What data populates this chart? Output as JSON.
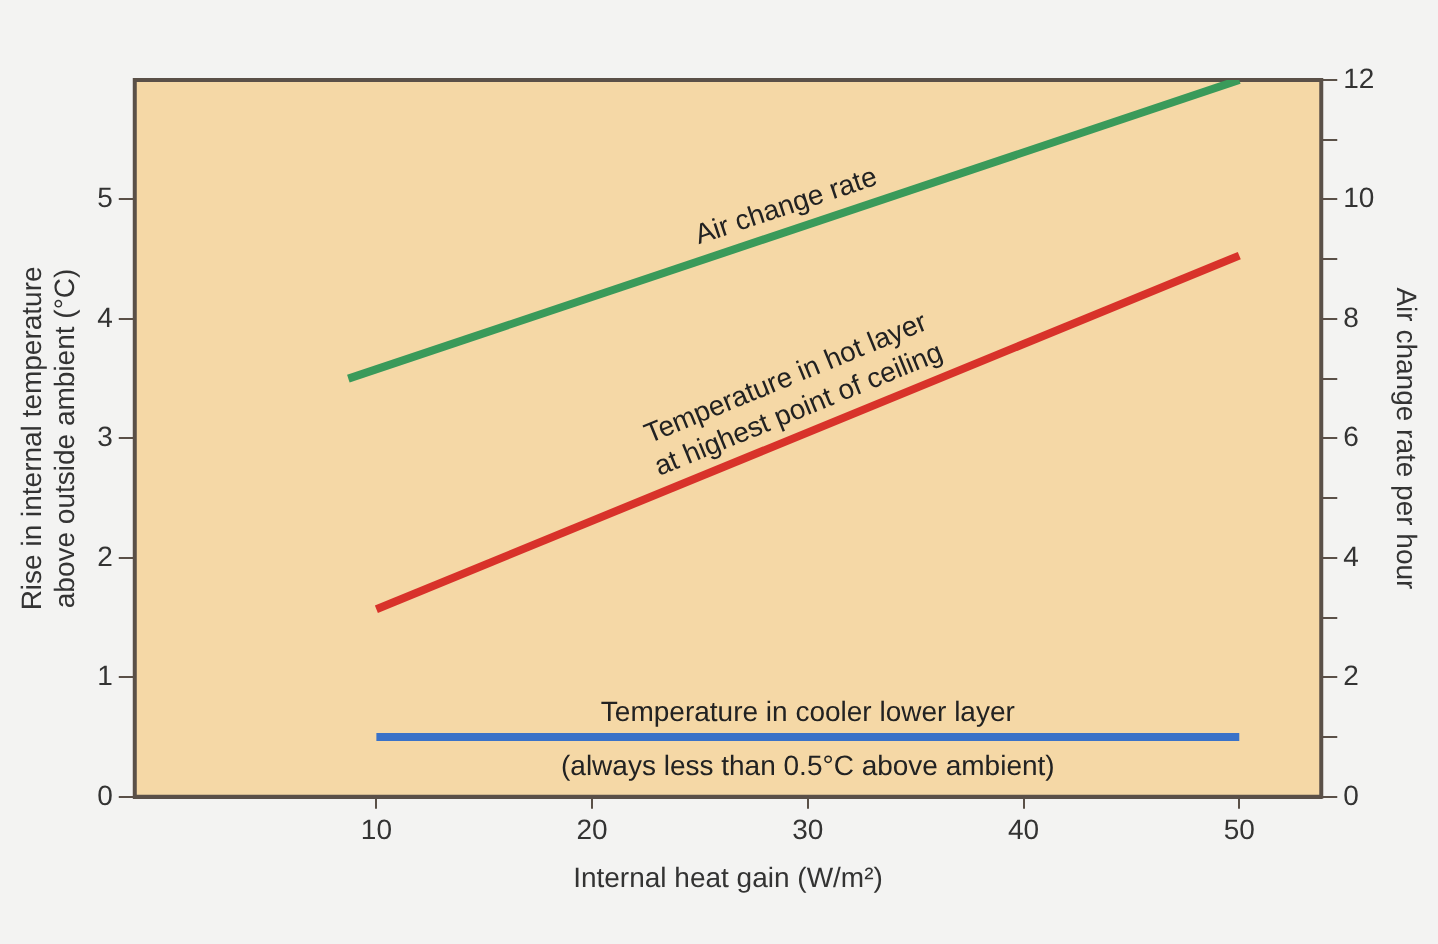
{
  "chart_data": {
    "type": "line",
    "xlabel": "Internal heat gain (W/m²)",
    "ylabel": "Rise in internal temperature above outside ambient (°C)",
    "y2label": "Air change rate per hour",
    "xlim": [
      -1.2,
      53.8
    ],
    "xticks": [
      10,
      20,
      30,
      40,
      50
    ],
    "ylim": [
      0,
      6
    ],
    "yticks": [
      0,
      1,
      2,
      3,
      4,
      5
    ],
    "y2lim": [
      0,
      12
    ],
    "y2ticks": [
      0,
      {
        "value": 1,
        "label": null
      },
      2,
      {
        "value": 3,
        "label": null
      },
      4,
      {
        "value": 5,
        "label": null
      },
      6,
      {
        "value": 7,
        "label": null
      },
      8,
      {
        "value": 9,
        "label": null
      },
      10,
      {
        "value": 11,
        "label": null
      },
      12
    ],
    "series": [
      {
        "name": "Air change rate",
        "color": "#3a9a5a",
        "axis": "y2",
        "x": [
          8.7,
          50
        ],
        "values": [
          7,
          12
        ]
      },
      {
        "name": "Temperature in hot layer at highest point of ceiling",
        "color": "#d8322a",
        "x": [
          10,
          50
        ],
        "values": [
          1.57,
          4.53
        ]
      },
      {
        "name": "Temperature in cooler lower layer",
        "color": "#3a72c8",
        "x": [
          10,
          50
        ],
        "values": [
          0.5,
          0.5
        ]
      }
    ],
    "annotations": [
      {
        "text": "(always less than 0.5°C above ambient)",
        "x": 30,
        "y": 0.5
      }
    ],
    "legend": false,
    "marker": "none",
    "line_style": "solid"
  }
}
